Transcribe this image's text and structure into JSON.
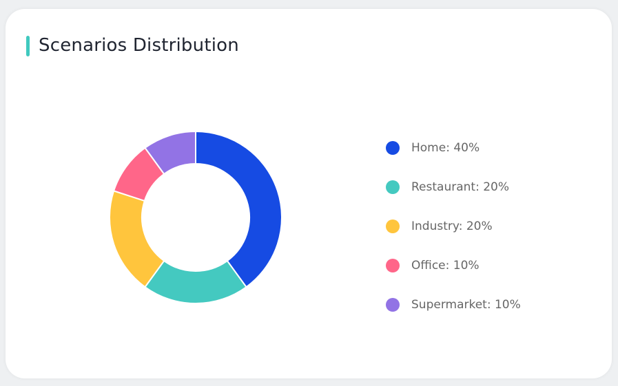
{
  "title": "Scenarios Distribution",
  "accent_color": "#40c9bf",
  "chart_data": {
    "type": "pie",
    "variant": "donut",
    "title": "Scenarios Distribution",
    "legend_position": "right",
    "slices": [
      {
        "name": "Home",
        "value": 40,
        "color": "#164be3",
        "label": "Home: 40%"
      },
      {
        "name": "Restaurant",
        "value": 20,
        "color": "#44c9c0",
        "label": "Restaurant: 20%"
      },
      {
        "name": "Industry",
        "value": 20,
        "color": "#ffc53d",
        "label": "Industry: 20%"
      },
      {
        "name": "Office",
        "value": 10,
        "color": "#ff6689",
        "label": "Office: 10%"
      },
      {
        "name": "Supermarket",
        "value": 10,
        "color": "#9273e5",
        "label": "Supermarket: 10%"
      }
    ]
  }
}
